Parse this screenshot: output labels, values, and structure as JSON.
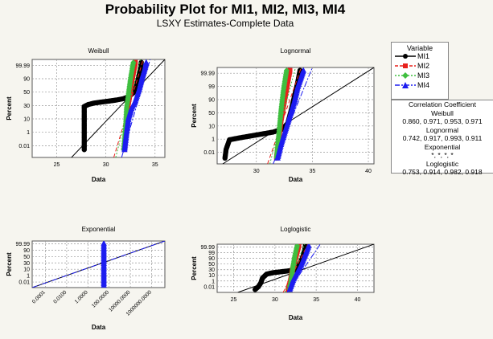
{
  "title": "Probability Plot for MI1, MI2, MI3, MI4",
  "subtitle": "LSXY Estimates-Complete Data",
  "series_colors": {
    "MI1": "#000000",
    "MI2": "#e8201c",
    "MI3": "#3fbf3f",
    "MI4": "#1c1cf0"
  },
  "legend": {
    "title": "Variable",
    "items": [
      {
        "name": "MI1",
        "color": "#000000",
        "marker": "circle"
      },
      {
        "name": "MI2",
        "color": "#e8201c",
        "marker": "square"
      },
      {
        "name": "MI3",
        "color": "#3fbf3f",
        "marker": "diamond"
      },
      {
        "name": "MI4",
        "color": "#1c1cf0",
        "marker": "triangle"
      }
    ]
  },
  "correlation": {
    "title": "Correlation Coefficient",
    "groups": [
      {
        "name": "Weibull",
        "values": "0.860, 0.971, 0.953, 0.971"
      },
      {
        "name": "Lognormal",
        "values": "0.742, 0.917, 0.993, 0.911"
      },
      {
        "name": "Exponential",
        "values": "*, *, *, *"
      },
      {
        "name": "Loglogistic",
        "values": "0.753, 0.914, 0.982, 0.918"
      }
    ]
  },
  "chart_data": [
    {
      "type": "scatter",
      "title": "Weibull",
      "xlabel": "Data",
      "ylabel": "Percent",
      "xlim": [
        22.5,
        36
      ],
      "x_ticks": [
        "25",
        "30",
        "35"
      ],
      "x_tick_values": [
        25,
        30,
        35
      ],
      "y_ticks": [
        "0.01",
        "1",
        "10",
        "30",
        "50",
        "90",
        "99.99"
      ],
      "series": [
        {
          "name": "MI1",
          "fit": [
            [
              26.5,
              0.0
            ],
            [
              36.0,
              1.0
            ]
          ],
          "points": [
            [
              27.8,
              0.08
            ],
            [
              27.8,
              0.14
            ],
            [
              27.8,
              0.2
            ],
            [
              27.8,
              0.26
            ],
            [
              27.8,
              0.32
            ],
            [
              27.8,
              0.38
            ],
            [
              27.8,
              0.44
            ],
            [
              27.8,
              0.5
            ],
            [
              27.8,
              0.52
            ],
            [
              28.2,
              0.54
            ],
            [
              28.8,
              0.555
            ],
            [
              29.5,
              0.565
            ],
            [
              30.3,
              0.575
            ],
            [
              31.0,
              0.585
            ],
            [
              31.8,
              0.6
            ],
            [
              32.3,
              0.62
            ],
            [
              32.8,
              0.66
            ],
            [
              33.1,
              0.72
            ],
            [
              33.3,
              0.8
            ],
            [
              33.5,
              0.9
            ],
            [
              33.6,
              0.97
            ]
          ]
        },
        {
          "name": "MI2",
          "fit": [
            [
              30.8,
              0.0
            ],
            [
              33.8,
              1.0
            ]
          ],
          "points": [
            [
              31.9,
              0.08
            ],
            [
              32.0,
              0.2
            ],
            [
              32.1,
              0.35
            ],
            [
              32.2,
              0.5
            ],
            [
              32.4,
              0.62
            ],
            [
              32.6,
              0.75
            ],
            [
              32.8,
              0.87
            ],
            [
              33.0,
              0.97
            ]
          ]
        },
        {
          "name": "MI3",
          "fit": [
            [
              31.0,
              0.0
            ],
            [
              33.5,
              1.0
            ]
          ],
          "points": [
            [
              31.8,
              0.08
            ],
            [
              32.0,
              0.3
            ],
            [
              32.1,
              0.5
            ],
            [
              32.3,
              0.65
            ],
            [
              32.5,
              0.8
            ],
            [
              32.7,
              0.92
            ],
            [
              32.8,
              0.97
            ]
          ]
        },
        {
          "name": "MI4",
          "fit": [
            [
              31.6,
              0.0
            ],
            [
              34.5,
              1.0
            ]
          ],
          "points": [
            [
              31.9,
              0.08
            ],
            [
              32.1,
              0.25
            ],
            [
              32.3,
              0.4
            ],
            [
              32.6,
              0.5
            ],
            [
              33.0,
              0.58
            ],
            [
              33.4,
              0.7
            ],
            [
              33.7,
              0.82
            ],
            [
              34.0,
              0.92
            ],
            [
              34.1,
              0.97
            ]
          ]
        }
      ]
    },
    {
      "type": "scatter",
      "title": "Lognormal",
      "xlabel": "Data",
      "ylabel": "Percent",
      "xlim": [
        26.5,
        40.5
      ],
      "x_ticks": [
        "30",
        "35",
        "40"
      ],
      "x_tick_values": [
        30,
        35,
        40
      ],
      "y_ticks": [
        "0.01",
        "1",
        "10",
        "50",
        "90",
        "99",
        "99.99"
      ],
      "series": [
        {
          "name": "MI1",
          "fit": [
            [
              27.0,
              0.0
            ],
            [
              40.5,
              1.0
            ]
          ],
          "points": [
            [
              27.2,
              0.06
            ],
            [
              27.3,
              0.15
            ],
            [
              27.6,
              0.25
            ],
            [
              28.5,
              0.27
            ],
            [
              29.5,
              0.29
            ],
            [
              30.5,
              0.31
            ],
            [
              31.5,
              0.33
            ],
            [
              32.3,
              0.36
            ],
            [
              32.8,
              0.42
            ],
            [
              33.1,
              0.55
            ],
            [
              33.4,
              0.7
            ],
            [
              33.7,
              0.85
            ],
            [
              33.9,
              0.97
            ]
          ]
        },
        {
          "name": "MI2",
          "fit": [
            [
              31.0,
              0.0
            ],
            [
              34.0,
              1.0
            ]
          ],
          "points": [
            [
              31.8,
              0.06
            ],
            [
              32.0,
              0.25
            ],
            [
              32.2,
              0.45
            ],
            [
              32.5,
              0.65
            ],
            [
              32.8,
              0.85
            ],
            [
              33.0,
              0.97
            ]
          ]
        },
        {
          "name": "MI3",
          "fit": [
            [
              31.2,
              0.0
            ],
            [
              33.5,
              1.0
            ]
          ],
          "points": [
            [
              31.8,
              0.06
            ],
            [
              32.0,
              0.3
            ],
            [
              32.2,
              0.55
            ],
            [
              32.4,
              0.75
            ],
            [
              32.6,
              0.9
            ],
            [
              32.7,
              0.97
            ]
          ]
        },
        {
          "name": "MI4",
          "fit": [
            [
              31.5,
              0.0
            ],
            [
              35.0,
              1.0
            ]
          ],
          "points": [
            [
              31.9,
              0.06
            ],
            [
              32.2,
              0.2
            ],
            [
              32.6,
              0.35
            ],
            [
              33.0,
              0.5
            ],
            [
              33.4,
              0.65
            ],
            [
              33.7,
              0.8
            ],
            [
              34.0,
              0.9
            ],
            [
              34.2,
              0.97
            ]
          ]
        }
      ]
    },
    {
      "type": "scatter",
      "title": "Exponential",
      "xlabel": "Data",
      "ylabel": "Percent",
      "x_ticks": [
        "0.0001",
        "0.0100",
        "1.0000",
        "100.0000",
        "10000.0000",
        "1000000.0000"
      ],
      "y_ticks": [
        "0.01",
        "1",
        "10",
        "30",
        "50",
        "90",
        "99.99"
      ],
      "series": [
        {
          "name": "MI1",
          "fit": [
            [
              0.0,
              0.0
            ],
            [
              1.0,
              1.0
            ]
          ],
          "points": []
        },
        {
          "name": "MI4",
          "fit": [
            [
              0.0,
              0.0
            ],
            [
              1.0,
              1.0
            ]
          ],
          "points": [
            [
              0.54,
              0.05
            ],
            [
              0.54,
              0.15
            ],
            [
              0.54,
              0.25
            ],
            [
              0.54,
              0.35
            ],
            [
              0.54,
              0.45
            ],
            [
              0.54,
              0.55
            ],
            [
              0.54,
              0.65
            ],
            [
              0.54,
              0.75
            ],
            [
              0.54,
              0.85
            ],
            [
              0.54,
              0.95
            ]
          ]
        }
      ]
    },
    {
      "type": "scatter",
      "title": "Loglogistic",
      "xlabel": "Data",
      "ylabel": "Percent",
      "xlim": [
        23,
        42
      ],
      "x_ticks": [
        "25",
        "30",
        "35",
        "40"
      ],
      "x_tick_values": [
        25,
        30,
        35,
        40
      ],
      "y_ticks": [
        "0.01",
        "1",
        "10",
        "30",
        "50",
        "90",
        "99",
        "99.99"
      ],
      "series": [
        {
          "name": "MI1",
          "fit": [
            [
              25.5,
              0.0
            ],
            [
              42.0,
              1.0
            ]
          ],
          "points": [
            [
              27.6,
              0.06
            ],
            [
              28.0,
              0.12
            ],
            [
              28.3,
              0.2
            ],
            [
              28.5,
              0.3
            ],
            [
              29.0,
              0.38
            ],
            [
              29.8,
              0.41
            ],
            [
              30.8,
              0.43
            ],
            [
              31.8,
              0.45
            ],
            [
              32.4,
              0.48
            ],
            [
              32.8,
              0.53
            ],
            [
              33.1,
              0.62
            ],
            [
              33.4,
              0.75
            ],
            [
              33.6,
              0.88
            ],
            [
              33.7,
              0.97
            ]
          ]
        },
        {
          "name": "MI2",
          "fit": [
            [
              31.0,
              0.0
            ],
            [
              34.0,
              1.0
            ]
          ],
          "points": [
            [
              31.6,
              0.06
            ],
            [
              31.9,
              0.25
            ],
            [
              32.1,
              0.45
            ],
            [
              32.4,
              0.65
            ],
            [
              32.7,
              0.85
            ],
            [
              32.9,
              0.97
            ]
          ]
        },
        {
          "name": "MI3",
          "fit": [
            [
              31.2,
              0.0
            ],
            [
              33.6,
              1.0
            ]
          ],
          "points": [
            [
              31.8,
              0.06
            ],
            [
              32.0,
              0.3
            ],
            [
              32.2,
              0.55
            ],
            [
              32.4,
              0.75
            ],
            [
              32.6,
              0.9
            ],
            [
              32.7,
              0.97
            ]
          ]
        },
        {
          "name": "MI4",
          "fit": [
            [
              31.5,
              0.0
            ],
            [
              35.5,
              1.0
            ]
          ],
          "points": [
            [
              31.8,
              0.06
            ],
            [
              32.2,
              0.25
            ],
            [
              32.7,
              0.42
            ],
            [
              33.2,
              0.58
            ],
            [
              33.6,
              0.75
            ],
            [
              33.9,
              0.88
            ],
            [
              34.1,
              0.97
            ]
          ]
        }
      ]
    }
  ]
}
